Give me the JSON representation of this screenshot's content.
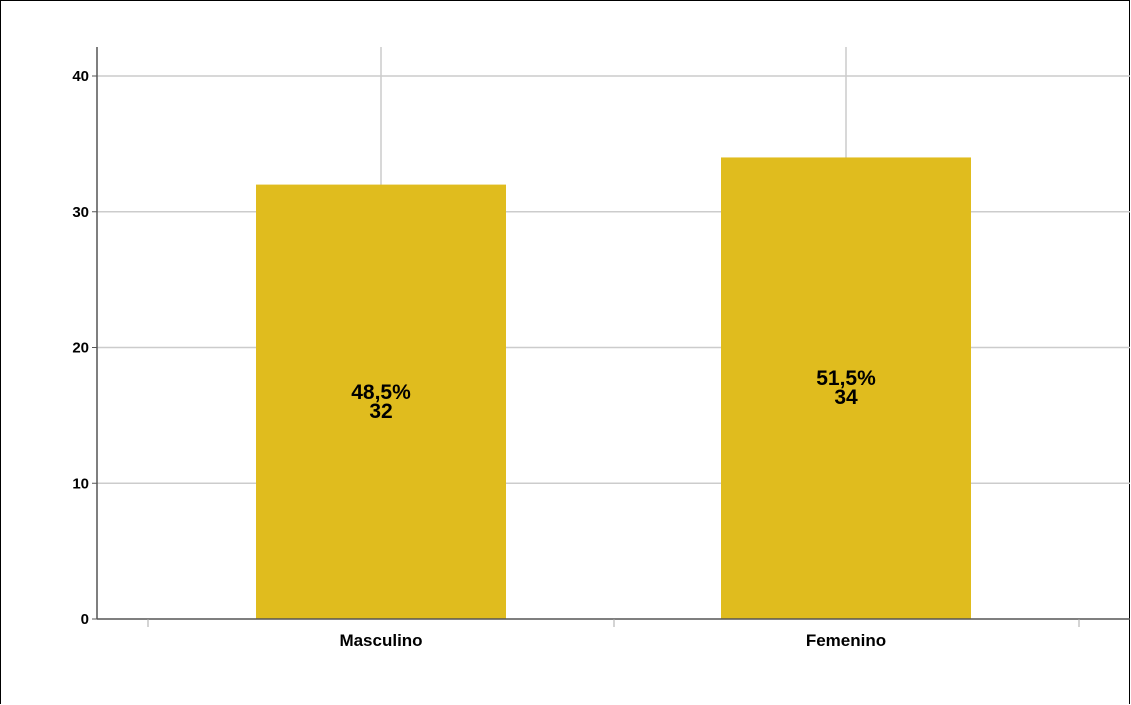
{
  "chart_data": {
    "type": "bar",
    "title": "",
    "xlabel": "",
    "ylabel": "",
    "categories": [
      "Masculino",
      "Femenino"
    ],
    "values": [
      32,
      34
    ],
    "data_labels": [
      {
        "percent": "48,5%",
        "count": "32"
      },
      {
        "percent": "51,5%",
        "count": "34"
      }
    ],
    "ylim": [
      0,
      40
    ],
    "yticks": [
      "0",
      "10",
      "20",
      "30",
      "40"
    ],
    "grid": true,
    "legend": "none",
    "colors": {
      "bar": "#e0bc1e",
      "grid": "#cccccc",
      "axis": "#555555",
      "text": "#000000"
    }
  }
}
